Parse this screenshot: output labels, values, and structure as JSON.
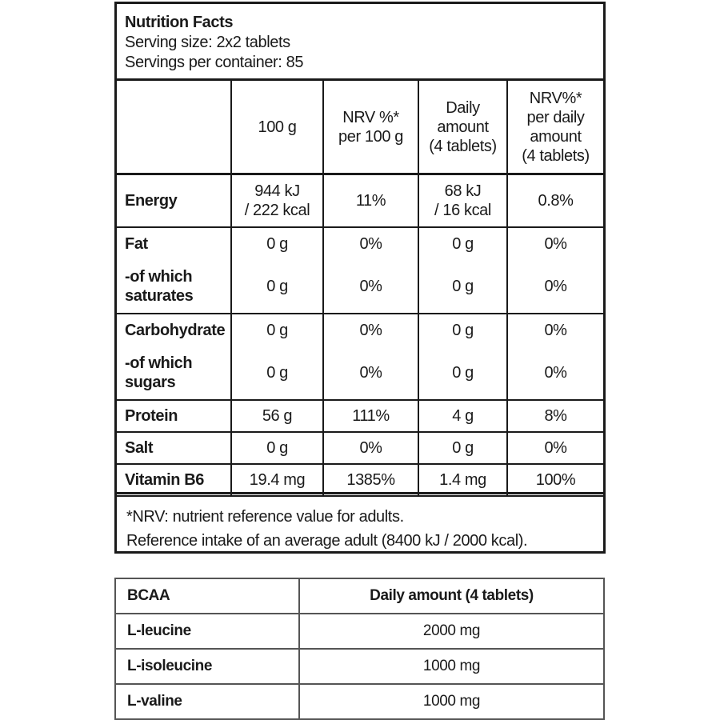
{
  "nutrition": {
    "title": "Nutrition Facts",
    "serving_size": "Serving size: 2x2 tablets",
    "servings_per_container": "Servings per container: 85",
    "columns": [
      "",
      "100 g",
      "NRV %*\nper 100 g",
      "Daily\namount\n(4 tablets)",
      "NRV%*\nper daily\namount\n(4 tablets)"
    ],
    "rows": [
      {
        "name": "Energy",
        "cells": [
          "944 kJ\n/ 222 kcal",
          "11%",
          "68 kJ\n/ 16 kcal",
          "0.8%"
        ]
      },
      {
        "name": "Fat",
        "cells": [
          "0 g",
          "0%",
          "0 g",
          "0%"
        ]
      },
      {
        "name": "-of which\nsaturates",
        "cells": [
          "0 g",
          "0%",
          "0 g",
          "0%"
        ]
      },
      {
        "name": "Carbohydrate",
        "cells": [
          "0 g",
          "0%",
          "0 g",
          "0%"
        ]
      },
      {
        "name": "-of which\nsugars",
        "cells": [
          "0 g",
          "0%",
          "0 g",
          "0%"
        ]
      },
      {
        "name": "Protein",
        "cells": [
          "56 g",
          "111%",
          "4 g",
          "8%"
        ]
      },
      {
        "name": "Salt",
        "cells": [
          "0 g",
          "0%",
          "0 g",
          "0%"
        ]
      },
      {
        "name": "Vitamin B6",
        "cells": [
          "19.4 mg",
          "1385%",
          "1.4 mg",
          "100%"
        ]
      }
    ],
    "footnote_1": "*NRV: nutrient reference value for adults.",
    "footnote_2": "Reference intake of an average adult (8400 kJ / 2000 kcal)."
  },
  "bcaa": {
    "headers": [
      "BCAA",
      "Daily amount (4 tablets)"
    ],
    "rows": [
      [
        "L-leucine",
        "2000 mg"
      ],
      [
        "L-isoleucine",
        "1000 mg"
      ],
      [
        "L-valine",
        "1000 mg"
      ]
    ]
  }
}
